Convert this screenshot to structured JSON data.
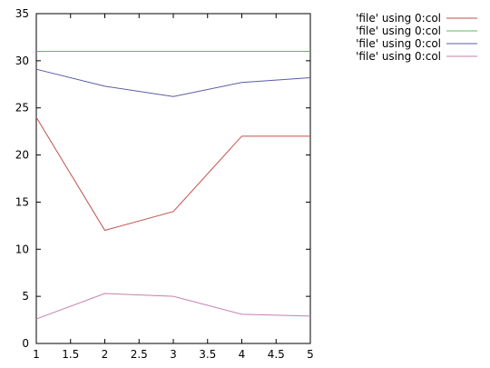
{
  "chart_data": {
    "type": "line",
    "title": "",
    "xlabel": "",
    "ylabel": "",
    "xlim": [
      1,
      5
    ],
    "ylim": [
      0,
      35
    ],
    "x_ticks": [
      "1",
      "1.5",
      "2",
      "2.5",
      "3",
      "3.5",
      "4",
      "4.5",
      "5"
    ],
    "y_ticks": [
      "0",
      "5",
      "10",
      "15",
      "20",
      "25",
      "30",
      "35"
    ],
    "grid": false,
    "legend_position": "top-right outside",
    "x": [
      1,
      2,
      3,
      4,
      5
    ],
    "series": [
      {
        "name": "'file' using 0:col",
        "color": "#c0504d",
        "values": [
          24,
          12,
          14,
          22,
          22
        ]
      },
      {
        "name": "'file' using 0:col",
        "color": "#5cb85c",
        "values": [
          31,
          31,
          31,
          31,
          31
        ]
      },
      {
        "name": "'file' using 0:col",
        "color": "#5b5ba8",
        "values": [
          29.1,
          27.3,
          26.2,
          27.7,
          28.2
        ]
      },
      {
        "name": "'file' using 0:col",
        "color": "#c77fb0",
        "values": [
          2.6,
          5.3,
          5.0,
          3.1,
          2.9
        ]
      }
    ]
  }
}
